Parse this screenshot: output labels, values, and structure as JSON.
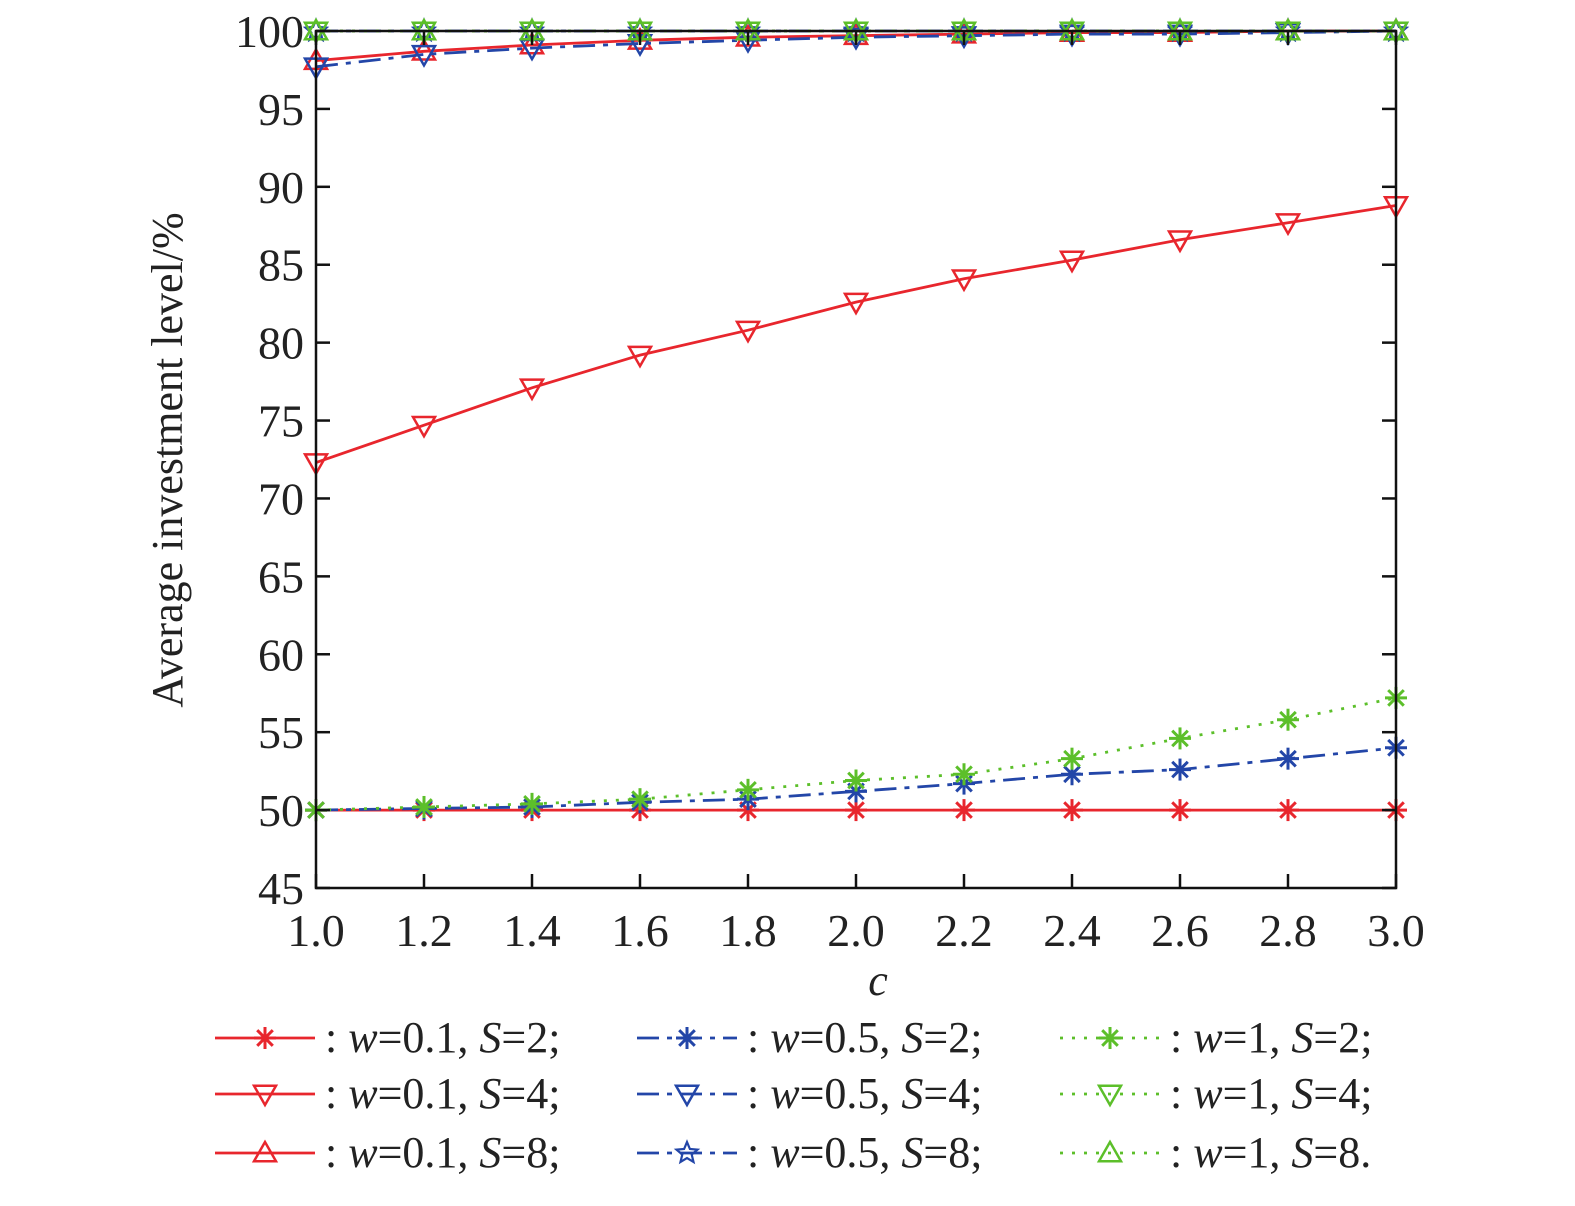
{
  "chart_data": {
    "type": "line",
    "xlabel": "c",
    "ylabel": "Average investment level/%",
    "xlim": [
      1.0,
      3.0
    ],
    "ylim": [
      45,
      100
    ],
    "x": [
      1.0,
      1.2,
      1.4,
      1.6,
      1.8,
      2.0,
      2.2,
      2.4,
      2.6,
      2.8,
      3.0
    ],
    "x_tick_labels": [
      "1.0",
      "1.2",
      "1.4",
      "1.6",
      "1.8",
      "2.0",
      "2.2",
      "2.4",
      "2.6",
      "2.8",
      "3.0"
    ],
    "y_ticks": [
      45,
      50,
      55,
      60,
      65,
      70,
      75,
      80,
      85,
      90,
      95,
      100
    ],
    "y_tick_labels": [
      "45",
      "50",
      "55",
      "60",
      "65",
      "70",
      "75",
      "80",
      "85",
      "90",
      "95",
      "100"
    ],
    "grid": false,
    "legend_position": "bottom",
    "legend_columns": 3,
    "series": [
      {
        "name": ": w=0.1, S=2;",
        "w": "0.1",
        "S": "2",
        "sep": ";",
        "color": "#e8262d",
        "line": "solid",
        "marker": "asterisk",
        "values": [
          50.0,
          50.0,
          50.0,
          50.0,
          50.0,
          50.0,
          50.0,
          50.0,
          50.0,
          50.0,
          50.0
        ]
      },
      {
        "name": ": w=0.1, S=4;",
        "w": "0.1",
        "S": "4",
        "sep": ";",
        "color": "#e8262d",
        "line": "solid",
        "marker": "triangle-down",
        "values": [
          72.3,
          74.7,
          77.1,
          79.2,
          80.8,
          82.6,
          84.1,
          85.3,
          86.6,
          87.7,
          88.8
        ]
      },
      {
        "name": ": w=0.1, S=8;",
        "w": "0.1",
        "S": "8",
        "sep": ";",
        "color": "#e8262d",
        "line": "solid",
        "marker": "triangle-up",
        "values": [
          98.1,
          98.7,
          99.1,
          99.4,
          99.6,
          99.7,
          99.8,
          99.9,
          99.9,
          100.0,
          100.0
        ]
      },
      {
        "name": ": w=0.5, S=2;",
        "w": "0.5",
        "S": "2",
        "sep": ";",
        "color": "#2346a8",
        "line": "dashdot",
        "marker": "asterisk",
        "values": [
          50.0,
          50.1,
          50.2,
          50.5,
          50.7,
          51.2,
          51.7,
          52.3,
          52.6,
          53.3,
          54.0
        ]
      },
      {
        "name": ": w=0.5, S=4;",
        "w": "0.5",
        "S": "4",
        "sep": ";",
        "color": "#2346a8",
        "line": "dashdot",
        "marker": "triangle-down",
        "values": [
          97.7,
          98.5,
          98.9,
          99.2,
          99.4,
          99.6,
          99.7,
          99.8,
          99.8,
          99.9,
          100.0
        ]
      },
      {
        "name": ": w=0.5, S=8;",
        "w": "0.5",
        "S": "8",
        "sep": ";",
        "color": "#2346a8",
        "line": "dashdot",
        "marker": "star",
        "values": [
          100.0,
          100.0,
          100.0,
          100.0,
          100.0,
          100.0,
          100.0,
          100.0,
          100.0,
          100.0,
          100.0
        ]
      },
      {
        "name": ": w=1, S=2;",
        "w": "1",
        "S": "2",
        "sep": ";",
        "color": "#5cbf2a",
        "line": "dotted",
        "marker": "asterisk",
        "values": [
          50.0,
          50.2,
          50.4,
          50.7,
          51.3,
          51.9,
          52.3,
          53.3,
          54.6,
          55.8,
          57.2
        ]
      },
      {
        "name": ": w=1, S=4;",
        "w": "1",
        "S": "4",
        "sep": ";",
        "color": "#5cbf2a",
        "line": "dotted",
        "marker": "triangle-down",
        "values": [
          100.0,
          100.0,
          100.0,
          100.0,
          100.0,
          100.0,
          100.0,
          100.0,
          100.0,
          100.0,
          100.0
        ]
      },
      {
        "name": ": w=1, S=8.",
        "w": "1",
        "S": "8",
        "sep": ".",
        "color": "#5cbf2a",
        "line": "dotted",
        "marker": "triangle-up",
        "values": [
          100.0,
          100.0,
          100.0,
          100.0,
          100.0,
          100.0,
          100.0,
          100.0,
          100.0,
          100.0,
          100.0
        ]
      }
    ]
  }
}
